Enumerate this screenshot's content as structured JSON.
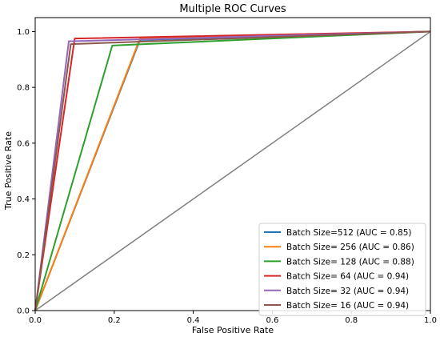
{
  "chart_data": {
    "type": "line",
    "title": "Multiple ROC Curves",
    "xlabel": "False Positive Rate",
    "ylabel": "True Positive Rate",
    "xlim": [
      0.0,
      1.0
    ],
    "ylim": [
      0.0,
      1.05
    ],
    "xticks": [
      "0.0",
      "0.2",
      "0.4",
      "0.6",
      "0.8",
      "1.0"
    ],
    "yticks": [
      "0.0",
      "0.2",
      "0.4",
      "0.6",
      "0.8",
      "1.0"
    ],
    "grid": false,
    "legend_position": "bottom-right",
    "series": [
      {
        "name": "Batch Size=512 (AUC = 0.85)",
        "color": "#1f77b4",
        "x": [
          0.0,
          0.265,
          1.0
        ],
        "y": [
          0.0,
          0.97,
          1.0
        ]
      },
      {
        "name": "Batch Size= 256 (AUC = 0.86)",
        "color": "#ff7f0e",
        "x": [
          0.0,
          0.265,
          1.0
        ],
        "y": [
          0.0,
          0.975,
          1.0
        ]
      },
      {
        "name": "Batch Size= 128 (AUC = 0.88)",
        "color": "#2ca02c",
        "x": [
          0.0,
          0.195,
          1.0
        ],
        "y": [
          0.0,
          0.95,
          1.0
        ]
      },
      {
        "name": "Batch Size= 64 (AUC = 0.94)",
        "color": "#d62728",
        "x": [
          0.0,
          0.1,
          1.0
        ],
        "y": [
          0.0,
          0.975,
          1.0
        ]
      },
      {
        "name": "Batch Size= 32 (AUC = 0.94)",
        "color": "#9467bd",
        "x": [
          0.0,
          0.085,
          1.0
        ],
        "y": [
          0.0,
          0.965,
          1.0
        ]
      },
      {
        "name": "Batch Size= 16 (AUC = 0.94)",
        "color": "#8c564b",
        "x": [
          0.0,
          0.09,
          1.0
        ],
        "y": [
          0.0,
          0.955,
          1.0
        ]
      }
    ],
    "reference_line": {
      "color": "#7f7f7f",
      "x": [
        0.0,
        1.0
      ],
      "y": [
        0.0,
        1.0
      ]
    }
  }
}
